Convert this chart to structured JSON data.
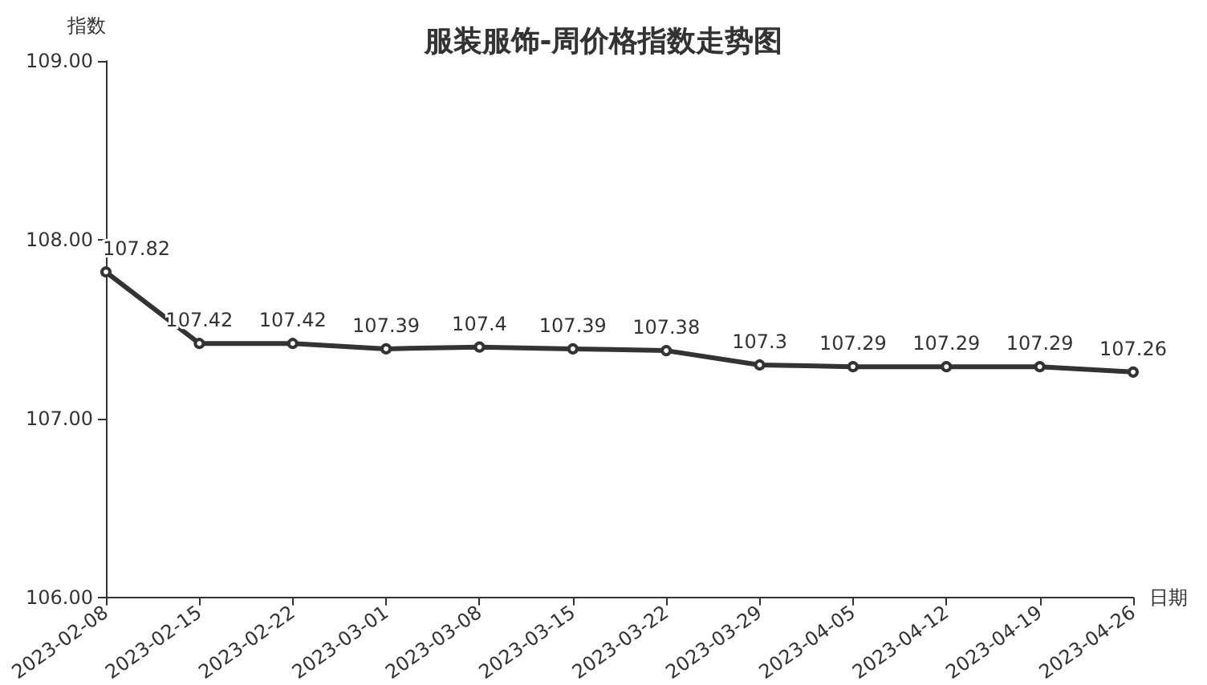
{
  "chart_data": {
    "type": "line",
    "title": "服装服饰-周价格指数走势图",
    "xlabel": "日期",
    "ylabel": "指数",
    "categories": [
      "2023-02-08",
      "2023-02-15",
      "2023-02-22",
      "2023-03-01",
      "2023-03-08",
      "2023-03-15",
      "2023-03-22",
      "2023-03-29",
      "2023-04-05",
      "2023-04-12",
      "2023-04-19",
      "2023-04-26"
    ],
    "series": [
      {
        "color": "#333333",
        "values": [
          107.82,
          107.42,
          107.42,
          107.39,
          107.4,
          107.39,
          107.38,
          107.3,
          107.29,
          107.29,
          107.29,
          107.26
        ]
      }
    ],
    "ylim": [
      106,
      109
    ],
    "yticks": [
      {
        "value": 106,
        "label": "106.00"
      },
      {
        "value": 107,
        "label": "107.00"
      },
      {
        "value": 108,
        "label": "108.00"
      },
      {
        "value": 109,
        "label": "109.00"
      }
    ],
    "data_labels": true,
    "marker": "circle",
    "line_style": "solid",
    "grid": false
  }
}
